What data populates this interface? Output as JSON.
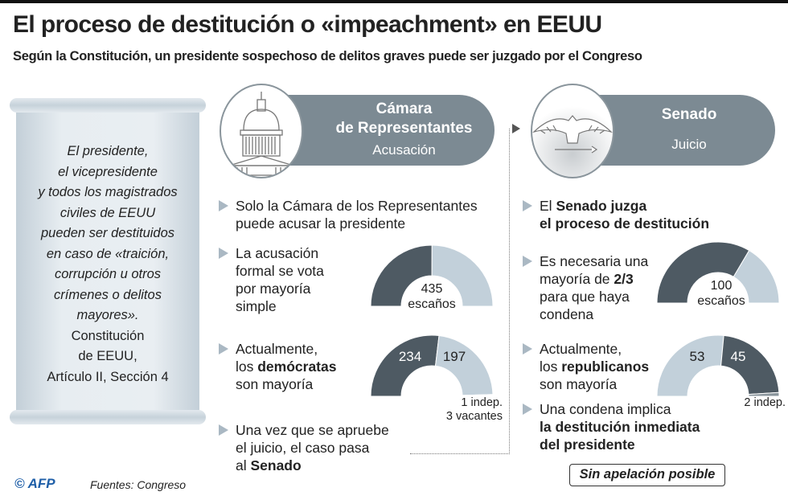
{
  "title": "El proceso de destitución o «impeachment» en EEUU",
  "subtitle": "Según la Constitución, un presidente sospechoso de delitos graves puede ser juzgado por el Congreso",
  "scroll": {
    "quote": [
      "El presidente,",
      "el vicepresidente",
      "y todos los magistrados",
      "civiles de EEUU",
      "pueden ser destituidos",
      "en caso  de «traición,",
      "corrupción u otros",
      "crímenes o delitos",
      "mayores»."
    ],
    "source": [
      "Constitución",
      "de EEUU,",
      "Artículo II, Sección 4"
    ]
  },
  "house": {
    "title1": "Cámara",
    "title2": "de Representantes",
    "role": "Acusación",
    "icon": "capitol-dome-icon",
    "bullets": [
      {
        "parts": [
          {
            "t": "Solo la Cámara de los Representantes"
          },
          {
            "br": 1
          },
          {
            "t": "puede acusar la presidente"
          }
        ]
      },
      {
        "parts": [
          {
            "t": "La acusación"
          },
          {
            "br": 1
          },
          {
            "t": "formal se vota"
          },
          {
            "br": 1
          },
          {
            "t": "por mayoría"
          },
          {
            "br": 1
          },
          {
            "t": "simple"
          }
        ]
      },
      {
        "parts": [
          {
            "t": "Actualmente,"
          },
          {
            "br": 1
          },
          {
            "t": "los "
          },
          {
            "t": "demócratas",
            "b": 1
          },
          {
            "br": 1
          },
          {
            "t": "son mayoría"
          }
        ]
      },
      {
        "parts": [
          {
            "t": "Una vez que se apruebe"
          },
          {
            "br": 1
          },
          {
            "t": "el juicio, el caso pasa"
          },
          {
            "br": 1
          },
          {
            "t": "al "
          },
          {
            "t": "Senado",
            "b": 1
          }
        ]
      }
    ],
    "total_label": [
      "435",
      "escaños"
    ],
    "seats_label_left": "234",
    "seats_label_right": "197",
    "note": [
      "1 indep.",
      "3 vacantes"
    ]
  },
  "senate": {
    "title": "Senado",
    "role": "Juicio",
    "icon": "eagle-seal-icon",
    "bullets": [
      {
        "parts": [
          {
            "t": "El "
          },
          {
            "t": "Senado juzga",
            "b": 1
          },
          {
            "br": 1
          },
          {
            "t": "el proceso de destitución",
            "b": 1
          }
        ]
      },
      {
        "parts": [
          {
            "t": "Es necesaria una"
          },
          {
            "br": 1
          },
          {
            "t": "mayoría de "
          },
          {
            "t": "2/3",
            "b": 1
          },
          {
            "br": 1
          },
          {
            "t": "para que haya"
          },
          {
            "br": 1
          },
          {
            "t": "condena"
          }
        ]
      },
      {
        "parts": [
          {
            "t": "Actualmente,"
          },
          {
            "br": 1
          },
          {
            "t": "los "
          },
          {
            "t": "republicanos",
            "b": 1
          },
          {
            "br": 1
          },
          {
            "t": "son mayoría"
          }
        ]
      },
      {
        "parts": [
          {
            "t": "Una condena implica"
          },
          {
            "br": 1
          },
          {
            "t": "la destitución inmediata",
            "b": 1
          },
          {
            "br": 1
          },
          {
            "t": "del presidente",
            "b": 1
          }
        ]
      }
    ],
    "total_label": [
      "100",
      "escaños"
    ],
    "seats_label_left": "53",
    "seats_label_right": "45",
    "note": [
      "2 indep."
    ],
    "no_appeal": "Sin apelación posible"
  },
  "colors": {
    "dark": "#4e5a63",
    "light": "#c2d0da",
    "pill": "#7c8a93",
    "indep": "#222222",
    "bullet": "#aab8c3"
  },
  "chart_data": [
    {
      "type": "semicircle",
      "name": "house-majority",
      "segments": [
        {
          "label": "mayoría simple",
          "value": 218,
          "color": "#4e5a63"
        },
        {
          "label": "resto",
          "value": 217,
          "color": "#c2d0da"
        }
      ],
      "total": 435
    },
    {
      "type": "semicircle",
      "name": "house-current",
      "segments": [
        {
          "label": "demócratas",
          "value": 234,
          "color": "#4e5a63"
        },
        {
          "label": "republicanos",
          "value": 197,
          "color": "#c2d0da"
        },
        {
          "label": "indep.",
          "value": 1,
          "color": "#222222"
        },
        {
          "label": "vacantes",
          "value": 3,
          "color": "#ffffff"
        }
      ],
      "total": 435
    },
    {
      "type": "semicircle",
      "name": "senate-majority",
      "segments": [
        {
          "label": "2/3",
          "value": 67,
          "color": "#4e5a63"
        },
        {
          "label": "resto",
          "value": 33,
          "color": "#c2d0da"
        }
      ],
      "total": 100
    },
    {
      "type": "semicircle",
      "name": "senate-current",
      "segments": [
        {
          "label": "republicanos",
          "value": 53,
          "color": "#c2d0da"
        },
        {
          "label": "demócratas",
          "value": 45,
          "color": "#4e5a63"
        },
        {
          "label": "indep.",
          "value": 2,
          "color": "#8a959c"
        }
      ],
      "total": 100
    }
  ],
  "footer": {
    "logo": "© AFP",
    "source": "Fuentes: Congreso"
  }
}
